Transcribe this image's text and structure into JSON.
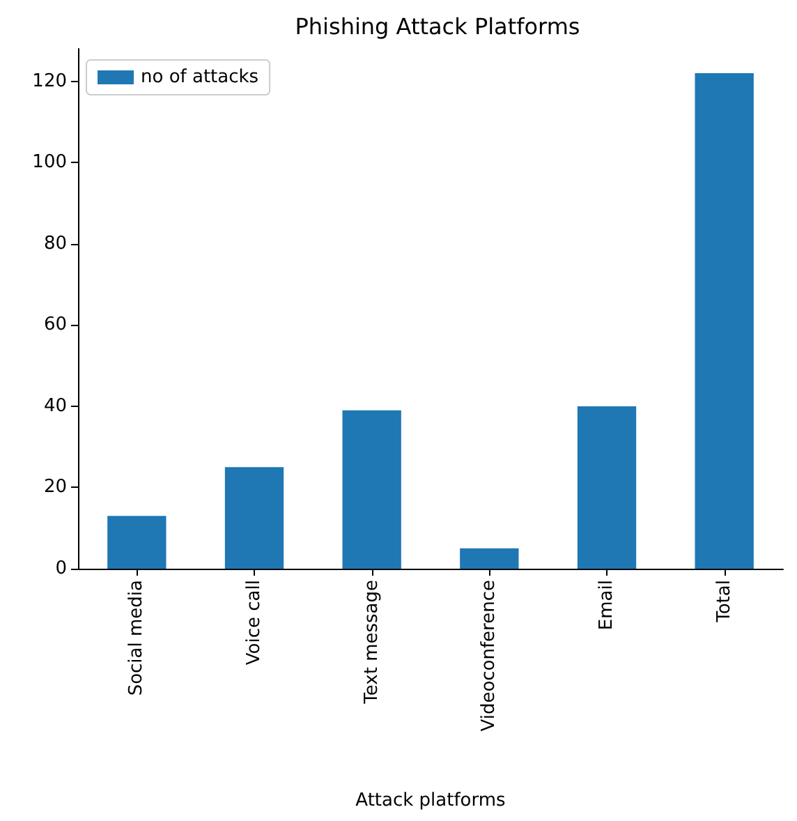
{
  "chart_data": {
    "type": "bar",
    "title": "Phishing Attack Platforms",
    "xlabel": "Attack platforms",
    "categories": [
      "Social media",
      "Voice call",
      "Text message",
      "Videoconference",
      "Email",
      "Total"
    ],
    "series": [
      {
        "name": "no of attacks",
        "color": "#1f77b4",
        "values": [
          13,
          25,
          39,
          5,
          40,
          122
        ]
      }
    ],
    "ylim": [
      0,
      128
    ],
    "yticks": [
      0,
      20,
      40,
      60,
      80,
      100,
      120
    ],
    "grid": false,
    "legend": "top left"
  }
}
